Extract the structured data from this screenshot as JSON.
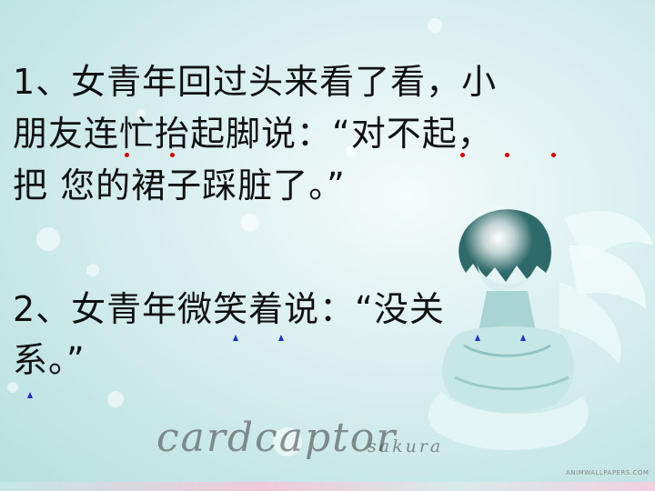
{
  "slide": {
    "lines": [
      "1、女青年回过头来看了看，小",
      "朋友连忙抬起脚说：“对不起，",
      "把 您的裙子踩脏了。”",
      "2、女青年微笑着说：“没关",
      "系。”"
    ]
  },
  "logo": {
    "main": "cardcaptor",
    "sub": "sakura"
  },
  "watermark": "ANIMWALLPAPERS.COM",
  "colors": {
    "dot_mark": "#e00000",
    "triangle_mark": "#1a2fd0",
    "text": "#111111"
  }
}
